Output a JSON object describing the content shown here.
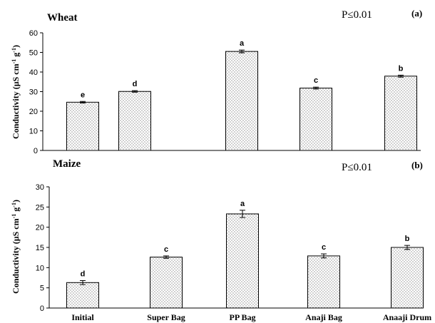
{
  "chart_data": [
    {
      "type": "bar",
      "title": "Wheat",
      "panel": "(a)",
      "annotation": "P≤0.01",
      "ylabel": "Conductivity (µS cm-1 g-1)",
      "ylim": [
        0,
        60
      ],
      "yticks": [
        0,
        10,
        20,
        30,
        40,
        50,
        60
      ],
      "categories": [
        "Initial",
        "Super Bag",
        "PP Bag",
        "Anaji Bag",
        "Anaaji Drum"
      ],
      "values": [
        24.6,
        30.1,
        50.5,
        31.8,
        37.9
      ],
      "errors": [
        0.4,
        0.4,
        0.7,
        0.5,
        0.5
      ],
      "letters": [
        "e",
        "d",
        "a",
        "c",
        "b"
      ]
    },
    {
      "type": "bar",
      "title": "Maize",
      "panel": "(b)",
      "annotation": "P≤0.01",
      "ylabel": "Conductivity (µS cm-1 g-1)",
      "ylim": [
        0,
        30
      ],
      "yticks": [
        0,
        5,
        10,
        15,
        20,
        25,
        30
      ],
      "categories": [
        "Initial",
        "Super Bag",
        "PP Bag",
        "Anaji Bag",
        "Anaaji Drum"
      ],
      "values": [
        6.3,
        12.6,
        23.3,
        12.9,
        15.0
      ],
      "errors": [
        0.5,
        0.3,
        0.9,
        0.5,
        0.5
      ],
      "letters": [
        "d",
        "c",
        "a",
        "c",
        "b"
      ]
    }
  ]
}
